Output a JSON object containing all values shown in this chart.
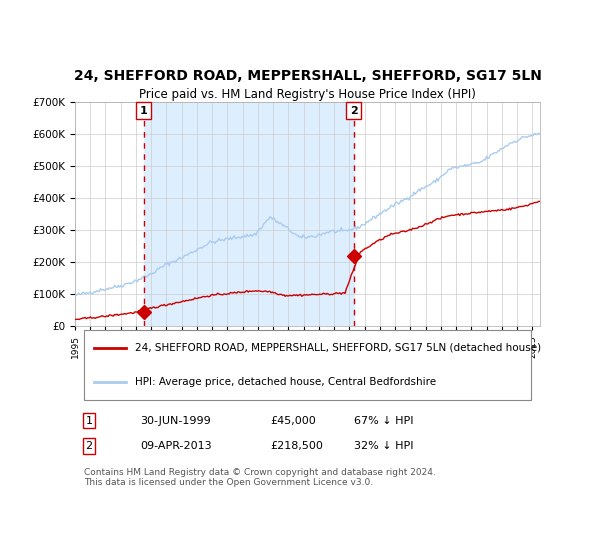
{
  "title": "24, SHEFFORD ROAD, MEPPERSHALL, SHEFFORD, SG17 5LN",
  "subtitle": "Price paid vs. HM Land Registry's House Price Index (HPI)",
  "legend_red": "24, SHEFFORD ROAD, MEPPERSHALL, SHEFFORD, SG17 5LN (detached house)",
  "legend_blue": "HPI: Average price, detached house, Central Bedfordshire",
  "transaction1_date": "30-JUN-1999",
  "transaction1_price": 45000,
  "transaction1_label": "67% ↓ HPI",
  "transaction2_date": "09-APR-2013",
  "transaction2_price": 218500,
  "transaction2_label": "32% ↓ HPI",
  "footer": "Contains HM Land Registry data © Crown copyright and database right 2024.\nThis data is licensed under the Open Government Licence v3.0.",
  "transaction1_x": 1999.5,
  "transaction2_x": 2013.27,
  "ylim": [
    0,
    700000
  ],
  "xlim": [
    1995.0,
    2025.5
  ],
  "red_color": "#cc0000",
  "blue_color": "#aaccee",
  "shade_color": "#ddeeff",
  "vline_color": "#cc0000",
  "title_fontsize": 10,
  "subtitle_fontsize": 9
}
